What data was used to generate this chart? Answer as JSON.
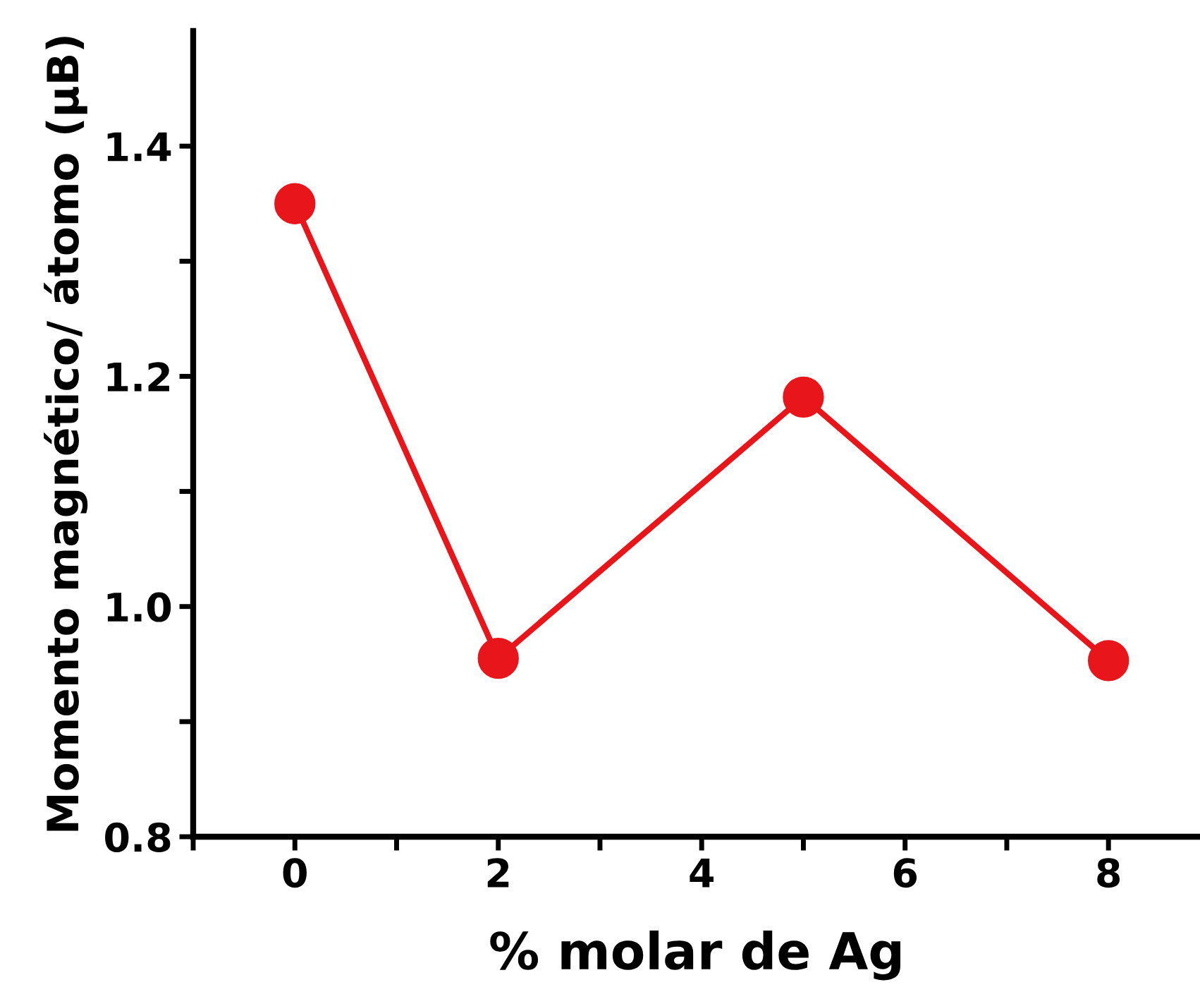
{
  "chart_data": {
    "type": "line",
    "xlabel": "% molar de Ag",
    "ylabel": "Momento magnético/ átomo (μB)",
    "x": [
      0,
      2,
      5,
      8
    ],
    "series": [
      {
        "color": "#e8161b",
        "values": [
          1.35,
          0.955,
          1.182,
          0.953
        ]
      }
    ],
    "xlim": [
      -1,
      8.9
    ],
    "ylim": [
      0.8,
      1.5
    ],
    "xticks": [
      {
        "value": -1,
        "label": null
      },
      0,
      {
        "value": 1,
        "label": null
      },
      2,
      {
        "value": 3,
        "label": null
      },
      4,
      {
        "value": 5,
        "label": null
      },
      6,
      {
        "value": 7,
        "label": null
      },
      8
    ],
    "yticks": [
      {
        "value": 0.8,
        "label": "0.8"
      },
      {
        "value": 0.9,
        "label": null
      },
      {
        "value": 1.0,
        "label": "1.0"
      },
      {
        "value": 1.1,
        "label": null
      },
      {
        "value": 1.2,
        "label": "1.2"
      },
      {
        "value": 1.3,
        "label": null
      },
      {
        "value": 1.4,
        "label": "1.4"
      }
    ],
    "marker": "circle",
    "line_style": "solid",
    "grid": false,
    "legend": false
  }
}
